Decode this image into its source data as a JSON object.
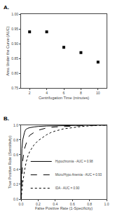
{
  "chart_data": [
    {
      "type": "scatter",
      "title": "A.",
      "x_label": "Centrifugation Time (minutes)",
      "y_label": "Area Under the Curve (AUC)",
      "x": [
        2,
        4,
        6,
        8,
        10
      ],
      "values": [
        0.94,
        0.94,
        0.888,
        0.87,
        0.838
      ],
      "color": "black",
      "marker": "square",
      "xlim": [
        1,
        11
      ],
      "ylim": [
        0.75,
        1.0
      ],
      "xticks": [
        2,
        4,
        6,
        8,
        10
      ],
      "yticks": [
        0.75,
        {
          "value": 0.8,
          "label": "0.80"
        },
        0.85,
        {
          "value": 0.9,
          "label": "0.90"
        },
        0.95,
        {
          "value": 1.0,
          "label": "1.00"
        }
      ],
      "grid": false
    },
    {
      "type": "line",
      "title": "B.",
      "x_label": "False Positive Rate (1-Specificity)",
      "y_label": "True Positive Rate (Sensitivity)",
      "series": [
        {
          "name": "Hypochromia - AUC = 0.98",
          "color": "black",
          "line_style": "solid",
          "x": [
            0.0,
            0.01,
            0.02,
            0.03,
            0.04,
            0.05,
            0.06,
            0.08,
            0.1,
            0.15,
            0.2,
            0.3,
            0.4,
            0.5,
            0.6,
            0.7,
            0.8,
            0.9,
            1.0
          ],
          "values": [
            0.0,
            0.68,
            0.8,
            0.86,
            0.9,
            0.93,
            0.945,
            0.957,
            0.965,
            0.975,
            0.982,
            0.988,
            0.992,
            0.994,
            0.996,
            0.997,
            0.998,
            0.999,
            1.0
          ]
        },
        {
          "name": "Micro/Hypo Anemia - AUC = 0.93",
          "color": "black",
          "line_style": "dashed",
          "x": [
            0.0,
            0.01,
            0.02,
            0.04,
            0.06,
            0.08,
            0.1,
            0.15,
            0.2,
            0.25,
            0.3,
            0.4,
            0.5,
            0.6,
            0.7,
            0.8,
            0.9,
            1.0
          ],
          "values": [
            0.0,
            0.35,
            0.52,
            0.68,
            0.76,
            0.82,
            0.86,
            0.9,
            0.93,
            0.95,
            0.963,
            0.975,
            0.982,
            0.988,
            0.992,
            0.995,
            0.998,
            1.0
          ]
        },
        {
          "name": "IDA - AUC = 0.90",
          "color": "black",
          "line_style": "dotted",
          "x": [
            0.0,
            0.01,
            0.02,
            0.04,
            0.06,
            0.08,
            0.1,
            0.15,
            0.2,
            0.25,
            0.3,
            0.35,
            0.4,
            0.5,
            0.6,
            0.7,
            0.8,
            0.9,
            1.0
          ],
          "values": [
            0.0,
            0.12,
            0.22,
            0.38,
            0.5,
            0.58,
            0.64,
            0.73,
            0.79,
            0.83,
            0.87,
            0.9,
            0.92,
            0.95,
            0.968,
            0.98,
            0.99,
            0.996,
            1.0
          ]
        }
      ],
      "xlim": [
        0.0,
        1.0
      ],
      "ylim": [
        0.0,
        1.0
      ],
      "xticks": [
        {
          "value": 0.0,
          "label": "0.0"
        },
        0.2,
        0.4,
        0.6,
        0.8,
        {
          "value": 1.0,
          "label": "1.0"
        }
      ],
      "yticks": [
        {
          "value": 0.0,
          "label": "0.0"
        },
        0.2,
        0.4,
        0.6,
        0.8,
        {
          "value": 1.0,
          "label": "1.0"
        }
      ],
      "legend": "lower right",
      "grid": false
    }
  ]
}
